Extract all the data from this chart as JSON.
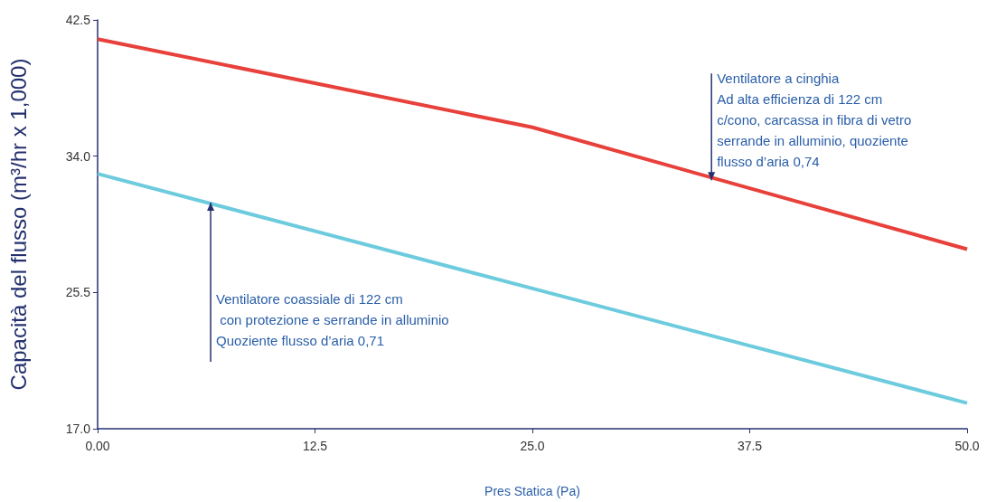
{
  "chart_data": {
    "type": "line",
    "xlabel": "Pres Statica (Pa)",
    "ylabel": "Capacità del flusso (m³/hr x 1,000)",
    "x": [
      0,
      25,
      50
    ],
    "series": [
      {
        "color": "#e8403a",
        "values": [
          41.3,
          35.8,
          28.2
        ]
      },
      {
        "color": "#6dcbde",
        "values": [
          32.9,
          25.75,
          18.6
        ]
      }
    ],
    "xlim": [
      0,
      50
    ],
    "xticks": [
      {
        "value": 0,
        "label": "0.00"
      },
      12.5,
      {
        "value": 25,
        "label": "25.0"
      },
      37.5,
      {
        "value": 50,
        "label": "50.0"
      }
    ],
    "ylim": [
      17,
      42.5
    ],
    "yticks": [
      {
        "value": 17,
        "label": "17.0"
      },
      25.5,
      {
        "value": 34,
        "label": "34.0"
      },
      42.5
    ],
    "grid": false,
    "marker": "none",
    "line_style": "solid",
    "annotations": [
      {
        "text": "Ventilatore a cinghia\nAd alta efficienza di 122 cm\nc/cono, carcassa in fibra di vetro\nserrande in alluminio, quoziente\nflusso d’aria 0,74",
        "x": 35.3,
        "y": 32.5
      },
      {
        "text": "Ventilatore coassiale di 122 cm\n con protezione e serrande in alluminio\nQuoziente flusso d’aria 0,71",
        "x": 6.5,
        "y": 31.1
      }
    ]
  }
}
